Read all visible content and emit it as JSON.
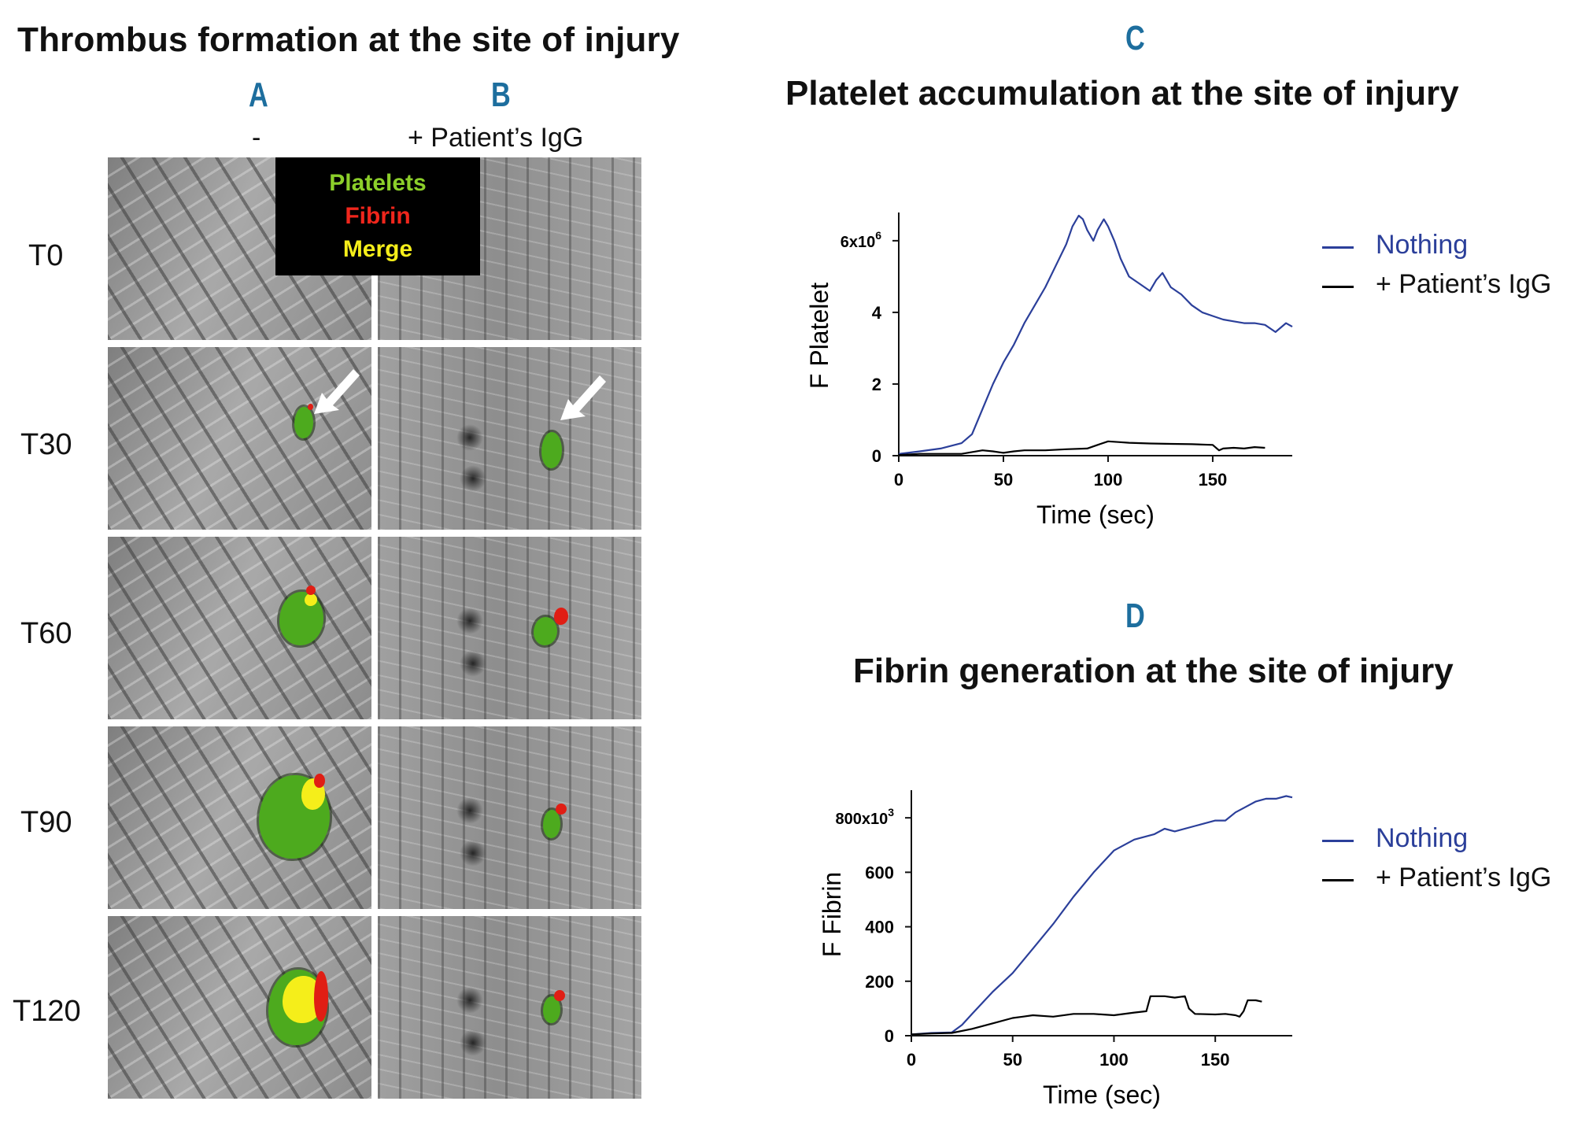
{
  "figure": {
    "left_title": "Thrombus formation at the site of injury",
    "panel_a": {
      "letter": "A",
      "label": "-"
    },
    "panel_b": {
      "letter": "B",
      "label": "+ Patient’s IgG"
    },
    "row_labels": [
      "T0",
      "T30",
      "T60",
      "T90",
      "T120"
    ],
    "overlay_legend": {
      "platelets": "Platelets",
      "fibrin": "Fibrin",
      "merge": "Merge"
    },
    "colors": {
      "platelets": "#4daa1e",
      "fibrin": "#e01e14",
      "merge": "#f5ee1a",
      "panel_letter": "#1d6e9e",
      "nothing_line": "#2b3f9a",
      "igg_line": "#000000"
    }
  },
  "chart_data": [
    {
      "type": "line",
      "letter": "C",
      "title": "Platelet accumulation at the site of injury",
      "xlabel": "Time (sec)",
      "ylabel": "F Platelet",
      "xlim": [
        0,
        188
      ],
      "ylim": [
        0,
        6.7
      ],
      "x_ticks": [
        0,
        50,
        100,
        150
      ],
      "y_ticks": [
        0,
        2,
        4,
        6
      ],
      "y_tick_labels": [
        "0",
        "2",
        "4",
        "6x10^6"
      ],
      "y_tick_label_top": {
        "base": "6x10",
        "exp": "6"
      },
      "legend_position": "right",
      "series": [
        {
          "name": "Nothing",
          "color": "#2b3f9a",
          "x": [
            0,
            10,
            20,
            30,
            35,
            40,
            45,
            50,
            55,
            60,
            65,
            70,
            75,
            80,
            83,
            86,
            88,
            90,
            93,
            95,
            98,
            100,
            103,
            106,
            110,
            115,
            120,
            123,
            126,
            128,
            130,
            135,
            140,
            145,
            150,
            155,
            160,
            165,
            170,
            175,
            180,
            185,
            188
          ],
          "y": [
            0.05,
            0.12,
            0.2,
            0.35,
            0.6,
            1.3,
            2.0,
            2.6,
            3.1,
            3.7,
            4.2,
            4.7,
            5.3,
            5.9,
            6.4,
            6.7,
            6.6,
            6.3,
            6.0,
            6.3,
            6.6,
            6.4,
            6.0,
            5.5,
            5.0,
            4.8,
            4.6,
            4.9,
            5.1,
            4.9,
            4.7,
            4.5,
            4.2,
            4.0,
            3.9,
            3.8,
            3.75,
            3.7,
            3.7,
            3.65,
            3.45,
            3.7,
            3.6
          ]
        },
        {
          "name": "+ Patient’s IgG",
          "color": "#000000",
          "x": [
            0,
            10,
            20,
            30,
            35,
            40,
            45,
            50,
            55,
            60,
            70,
            80,
            90,
            95,
            100,
            105,
            110,
            120,
            130,
            140,
            150,
            153,
            155,
            160,
            165,
            170,
            175
          ],
          "y": [
            0.02,
            0.05,
            0.05,
            0.05,
            0.1,
            0.15,
            0.12,
            0.08,
            0.12,
            0.15,
            0.15,
            0.18,
            0.2,
            0.3,
            0.4,
            0.38,
            0.36,
            0.34,
            0.33,
            0.32,
            0.3,
            0.15,
            0.2,
            0.22,
            0.2,
            0.24,
            0.22
          ]
        }
      ]
    },
    {
      "type": "line",
      "letter": "D",
      "title": "Fibrin generation at the site of injury",
      "xlabel": "Time (sec)",
      "ylabel": "F Fibrin",
      "xlim": [
        0,
        188
      ],
      "ylim": [
        0,
        890
      ],
      "x_ticks": [
        0,
        50,
        100,
        150
      ],
      "y_ticks": [
        0,
        200,
        400,
        600,
        800
      ],
      "y_tick_labels": [
        "0",
        "200",
        "400",
        "600",
        "800x10^3"
      ],
      "y_tick_label_top": {
        "base": "800x10",
        "exp": "3"
      },
      "legend_position": "right",
      "series": [
        {
          "name": "Nothing",
          "color": "#2b3f9a",
          "x": [
            0,
            10,
            20,
            25,
            30,
            40,
            50,
            60,
            70,
            80,
            90,
            100,
            110,
            120,
            125,
            130,
            140,
            150,
            155,
            160,
            165,
            170,
            175,
            180,
            185,
            188
          ],
          "y": [
            5,
            10,
            12,
            40,
            80,
            160,
            230,
            320,
            410,
            510,
            600,
            680,
            720,
            740,
            760,
            750,
            770,
            790,
            790,
            820,
            840,
            860,
            870,
            870,
            880,
            875
          ]
        },
        {
          "name": "+ Patient’s IgG",
          "color": "#000000",
          "x": [
            0,
            10,
            20,
            30,
            40,
            50,
            55,
            60,
            70,
            80,
            90,
            100,
            110,
            116,
            118,
            125,
            130,
            135,
            137,
            140,
            150,
            155,
            160,
            162,
            164,
            166,
            170,
            173
          ],
          "y": [
            5,
            8,
            10,
            25,
            45,
            65,
            70,
            75,
            70,
            80,
            80,
            75,
            85,
            90,
            145,
            145,
            140,
            145,
            100,
            80,
            78,
            80,
            75,
            70,
            90,
            130,
            130,
            125
          ]
        }
      ]
    }
  ]
}
